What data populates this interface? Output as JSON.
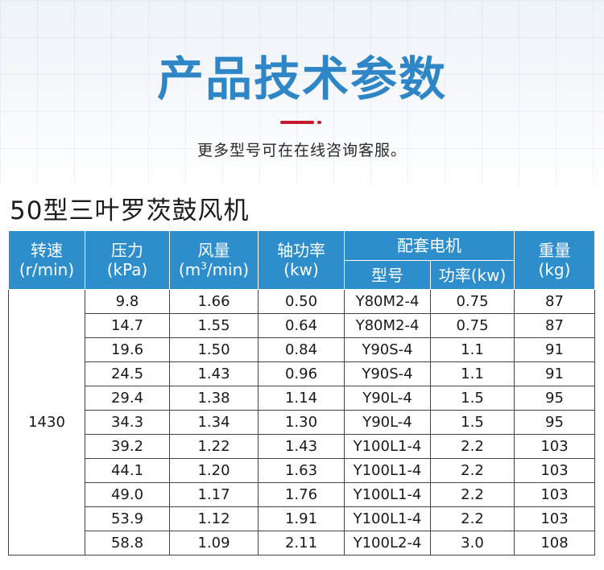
{
  "header": {
    "title": "产品技术参数",
    "subtitle": "更多型号可在在线咨询客服。"
  },
  "section": {
    "title": "50型三叶罗茨鼓风机"
  },
  "table": {
    "headers": {
      "speed": {
        "label": "转速",
        "unit": "(r/min)"
      },
      "pressure": {
        "label": "压力",
        "unit": "(kPa)"
      },
      "airflow": {
        "label": "风量",
        "unit_pre": "(m",
        "unit_sup": "3",
        "unit_post": "/min)"
      },
      "shaft_power": {
        "label": "轴功率",
        "unit": "(kw)"
      },
      "motor": {
        "label": "配套电机",
        "model": "型号",
        "power": "功率(kw)"
      },
      "weight": {
        "label": "重量",
        "unit": "(kg)"
      }
    },
    "speed_value": "1430",
    "rows": [
      {
        "pressure": "9.8",
        "airflow": "1.66",
        "shaft_power": "0.50",
        "model": "Y80M2-4",
        "motor_power": "0.75",
        "weight": "87"
      },
      {
        "pressure": "14.7",
        "airflow": "1.55",
        "shaft_power": "0.64",
        "model": "Y80M2-4",
        "motor_power": "0.75",
        "weight": "87"
      },
      {
        "pressure": "19.6",
        "airflow": "1.50",
        "shaft_power": "0.84",
        "model": "Y90S-4",
        "motor_power": "1.1",
        "weight": "91"
      },
      {
        "pressure": "24.5",
        "airflow": "1.43",
        "shaft_power": "0.96",
        "model": "Y90S-4",
        "motor_power": "1.1",
        "weight": "91"
      },
      {
        "pressure": "29.4",
        "airflow": "1.38",
        "shaft_power": "1.14",
        "model": "Y90L-4",
        "motor_power": "1.5",
        "weight": "95"
      },
      {
        "pressure": "34.3",
        "airflow": "1.34",
        "shaft_power": "1.30",
        "model": "Y90L-4",
        "motor_power": "1.5",
        "weight": "95"
      },
      {
        "pressure": "39.2",
        "airflow": "1.22",
        "shaft_power": "1.43",
        "model": "Y100L1-4",
        "motor_power": "2.2",
        "weight": "103"
      },
      {
        "pressure": "44.1",
        "airflow": "1.20",
        "shaft_power": "1.63",
        "model": "Y100L1-4",
        "motor_power": "2.2",
        "weight": "103"
      },
      {
        "pressure": "49.0",
        "airflow": "1.17",
        "shaft_power": "1.76",
        "model": "Y100L1-4",
        "motor_power": "2.2",
        "weight": "103"
      },
      {
        "pressure": "53.9",
        "airflow": "1.12",
        "shaft_power": "1.91",
        "model": "Y100L1-4",
        "motor_power": "2.2",
        "weight": "103"
      },
      {
        "pressure": "58.8",
        "airflow": "1.09",
        "shaft_power": "2.11",
        "model": "Y100L2-4",
        "motor_power": "3.0",
        "weight": "108"
      }
    ]
  },
  "colors": {
    "accent": "#2f86c7",
    "header_bg": "#2e8ecb",
    "deco_red": "#c41a30"
  }
}
